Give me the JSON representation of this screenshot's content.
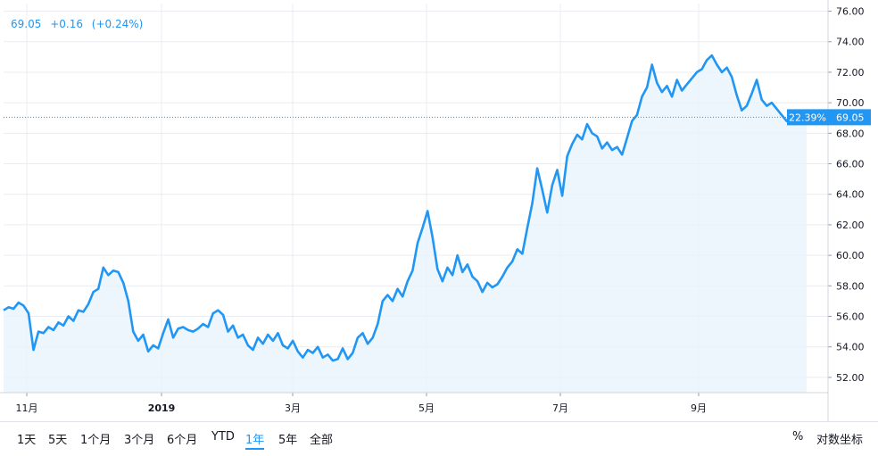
{
  "quote": {
    "price": "69.05",
    "change": "+0.16",
    "change_pct": "(+0.24%)"
  },
  "last_price_label": "69.05",
  "pct_label": "22.39%",
  "toolbar": {
    "ranges": [
      "1天",
      "5天",
      "1个月",
      "3个月",
      "6个月",
      "YTD",
      "1年",
      "5年",
      "全部"
    ],
    "active": "1年",
    "percent": "%",
    "log_scale": "对数坐标"
  },
  "colors": {
    "line": "#2196f3",
    "fill": "#e8f2fc",
    "grid": "#e9ecf1",
    "axis_text": "#131722"
  },
  "chart_data": {
    "type": "area",
    "x_ticks": [
      "11月",
      "2019",
      "3月",
      "5月",
      "7月",
      "9月"
    ],
    "y_ticks": [
      52,
      54,
      56,
      58,
      60,
      62,
      64,
      66,
      68,
      70,
      72,
      74,
      76
    ],
    "ylim": [
      51,
      76.5
    ],
    "last_value": 69.05,
    "series": [
      {
        "values": [
          56.4,
          56.6,
          56.5,
          56.9,
          56.7,
          56.2,
          53.8,
          55.0,
          54.9,
          55.3,
          55.1,
          55.6,
          55.4,
          56.0,
          55.7,
          56.4,
          56.3,
          56.8,
          57.6,
          57.8,
          59.2,
          58.7,
          59.0,
          58.9,
          58.2,
          57.0,
          55.0,
          54.4,
          54.8,
          53.7,
          54.1,
          53.9,
          54.9,
          55.8,
          54.6,
          55.2,
          55.3,
          55.1,
          55.0,
          55.2,
          55.5,
          55.3,
          56.2,
          56.4,
          56.1,
          55.0,
          55.4,
          54.6,
          54.8,
          54.1,
          53.8,
          54.6,
          54.2,
          54.8,
          54.4,
          54.9,
          54.1,
          53.9,
          54.4,
          53.7,
          53.3,
          53.8,
          53.6,
          54.0,
          53.3,
          53.5,
          53.1,
          53.2,
          53.9,
          53.2,
          53.6,
          54.6,
          54.9,
          54.2,
          54.6,
          55.5,
          57.0,
          57.4,
          57.0,
          57.8,
          57.3,
          58.3,
          59.0,
          60.8,
          61.8,
          62.9,
          61.2,
          59.1,
          58.3,
          59.2,
          58.7,
          60.0,
          58.9,
          59.4,
          58.6,
          58.3,
          57.6,
          58.2,
          57.9,
          58.1,
          58.6,
          59.2,
          59.6,
          60.4,
          60.1,
          61.8,
          63.4,
          65.7,
          64.3,
          62.8,
          64.6,
          65.6,
          63.9,
          66.5,
          67.3,
          67.9,
          67.6,
          68.6,
          68.0,
          67.8,
          67.0,
          67.4,
          66.9,
          67.1,
          66.6,
          67.7,
          68.8,
          69.2,
          70.4,
          71.0,
          72.5,
          71.3,
          70.7,
          71.1,
          70.4,
          71.5,
          70.8,
          71.2,
          71.6,
          72.0,
          72.2,
          72.8,
          73.1,
          72.5,
          72.0,
          72.3,
          71.7,
          70.5,
          69.5,
          69.8,
          70.6,
          71.5,
          70.2,
          69.8,
          70.0,
          69.6,
          69.2,
          68.8,
          69.2,
          68.7,
          68.9,
          69.05
        ]
      }
    ]
  }
}
